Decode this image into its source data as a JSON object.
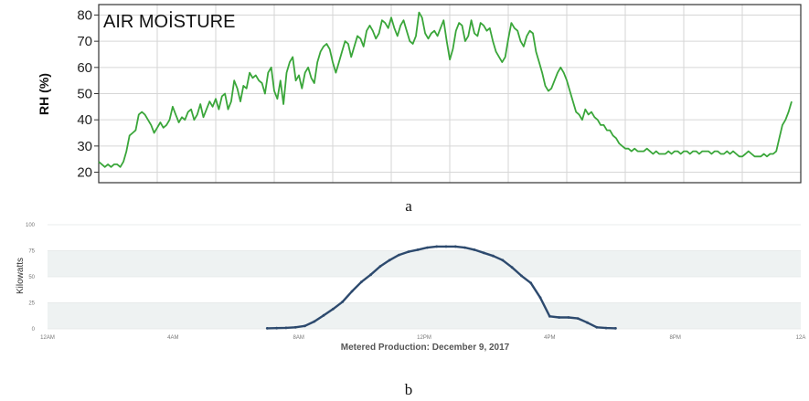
{
  "chart_data": [
    {
      "type": "line",
      "title": "AIR MOİSTURE",
      "xlabel": "",
      "ylabel": "RH (%)",
      "yticks": [
        20,
        30,
        40,
        50,
        60,
        70,
        80
      ],
      "ylim": [
        16,
        84
      ],
      "grid": true,
      "caption": "a",
      "color": "#3aa63a",
      "series": [
        {
          "values": [
            24,
            23,
            22,
            23,
            22,
            23,
            23,
            22,
            24,
            28,
            34,
            35,
            36,
            42,
            43,
            42,
            40,
            38,
            35,
            37,
            39,
            37,
            38,
            40,
            45,
            42,
            39,
            41,
            40,
            43,
            44,
            40,
            42,
            46,
            41,
            44,
            47,
            45,
            48,
            44,
            49,
            50,
            44,
            47,
            55,
            52,
            47,
            53,
            52,
            58,
            56,
            57,
            55,
            54,
            50,
            58,
            60,
            51,
            48,
            55,
            46,
            58,
            62,
            64,
            55,
            57,
            52,
            58,
            60,
            56,
            54,
            62,
            66,
            68,
            69,
            67,
            62,
            58,
            62,
            66,
            70,
            69,
            64,
            68,
            72,
            71,
            68,
            74,
            76,
            74,
            71,
            73,
            78,
            77,
            75,
            79,
            75,
            72,
            76,
            78,
            74,
            70,
            69,
            72,
            81,
            79,
            73,
            71,
            73,
            74,
            72,
            75,
            78,
            70,
            63,
            67,
            74,
            77,
            76,
            70,
            72,
            78,
            73,
            72,
            77,
            76,
            74,
            75,
            70,
            66,
            64,
            62,
            64,
            71,
            77,
            75,
            74,
            70,
            68,
            72,
            74,
            73,
            66,
            62,
            58,
            53,
            51,
            52,
            55,
            58,
            60,
            58,
            55,
            51,
            47,
            43,
            42,
            40,
            44,
            42,
            43,
            41,
            40,
            38,
            38,
            36,
            36,
            34,
            33,
            31,
            30,
            29,
            29,
            28,
            29,
            28,
            28,
            28,
            29,
            28,
            27,
            28,
            27,
            27,
            27,
            28,
            27,
            28,
            28,
            27,
            28,
            28,
            27,
            28,
            28,
            27,
            28,
            28,
            28,
            27,
            28,
            28,
            27,
            27,
            28,
            27,
            28,
            27,
            26,
            26,
            27,
            28,
            27,
            26,
            26,
            26,
            27,
            26,
            27,
            27,
            28,
            33,
            38,
            40,
            43,
            47
          ]
        }
      ]
    },
    {
      "type": "line",
      "title": "",
      "xlabel": "Metered Production: December 9, 2017",
      "ylabel": "Kilowatts",
      "categories": [
        "12AM",
        "4AM",
        "8AM",
        "12PM",
        "4PM",
        "8PM",
        "12A"
      ],
      "yticks": [
        0,
        25,
        50,
        75,
        100
      ],
      "ylim": [
        0,
        100
      ],
      "caption": "b",
      "color": "#2d4a6e",
      "series": [
        {
          "x": [
            7.0,
            7.3,
            7.6,
            7.9,
            8.2,
            8.5,
            8.8,
            9.1,
            9.4,
            9.7,
            10.0,
            10.3,
            10.6,
            10.9,
            11.2,
            11.5,
            11.8,
            12.1,
            12.4,
            12.7,
            13.0,
            13.3,
            13.6,
            13.9,
            14.2,
            14.5,
            14.8,
            15.1,
            15.4,
            15.7,
            16.0,
            16.3,
            16.6,
            16.9,
            17.2,
            17.5,
            17.8,
            18.1
          ],
          "values": [
            0.5,
            0.7,
            1,
            1.5,
            2.8,
            7,
            13,
            19,
            26,
            36,
            45,
            52,
            60,
            66,
            71,
            74,
            76,
            78,
            79,
            79,
            79,
            78,
            76,
            73,
            70,
            66,
            59,
            51,
            44,
            30,
            12,
            11,
            11,
            10,
            6,
            1.5,
            0.8,
            0.5
          ]
        }
      ]
    }
  ]
}
